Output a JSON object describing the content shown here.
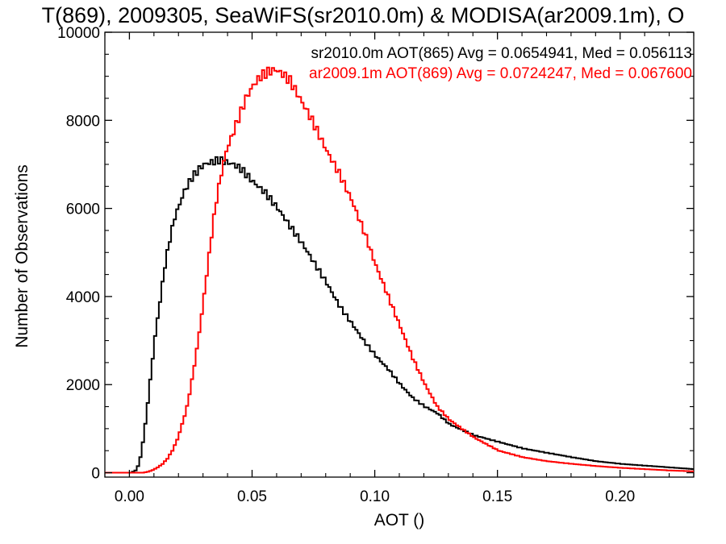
{
  "chart_data": {
    "type": "line",
    "title": "T(869), 2009305, SeaWiFS(sr2010.0m) & MODISA(ar2009.1m), O",
    "xlabel": "AOT ()",
    "ylabel": "Number of Observations",
    "xlim": [
      -0.01,
      0.23
    ],
    "ylim": [
      -100,
      10000
    ],
    "xticks": [
      0.0,
      0.05,
      0.1,
      0.15,
      0.2
    ],
    "xtick_labels": [
      "0.00",
      "0.05",
      "0.10",
      "0.15",
      "0.20"
    ],
    "yticks": [
      0,
      2000,
      4000,
      6000,
      8000,
      10000
    ],
    "ytick_labels": [
      "0",
      "2000",
      "4000",
      "6000",
      "8000",
      "10000"
    ],
    "grid": false,
    "step": true,
    "series": [
      {
        "name": "sr2010.0m AOT(865) Avg = 0.0654941, Med = 0.056113",
        "color": "#000000",
        "x": [
          -0.01,
          0.0,
          0.002,
          0.003,
          0.004,
          0.005,
          0.006,
          0.007,
          0.008,
          0.01,
          0.012,
          0.014,
          0.016,
          0.018,
          0.02,
          0.022,
          0.025,
          0.028,
          0.03,
          0.033,
          0.036,
          0.039,
          0.042,
          0.045,
          0.05,
          0.055,
          0.06,
          0.065,
          0.07,
          0.075,
          0.08,
          0.085,
          0.09,
          0.095,
          0.1,
          0.105,
          0.11,
          0.115,
          0.12,
          0.125,
          0.13,
          0.14,
          0.15,
          0.16,
          0.17,
          0.18,
          0.19,
          0.2,
          0.21,
          0.22,
          0.23
        ],
        "y": [
          0,
          0,
          50,
          150,
          350,
          700,
          1100,
          1600,
          2100,
          3100,
          3900,
          4700,
          5300,
          5800,
          6100,
          6400,
          6700,
          6900,
          7000,
          7050,
          7100,
          7050,
          7000,
          6900,
          6600,
          6350,
          6000,
          5600,
          5200,
          4750,
          4300,
          3800,
          3400,
          3000,
          2650,
          2350,
          2000,
          1700,
          1500,
          1350,
          1100,
          850,
          700,
          550,
          450,
          350,
          260,
          200,
          160,
          120,
          80
        ]
      },
      {
        "name": "ar2009.1m AOT(869) Avg = 0.0724247, Med = 0.067600",
        "color": "#ff0000",
        "x": [
          -0.01,
          0.005,
          0.007,
          0.009,
          0.011,
          0.013,
          0.015,
          0.017,
          0.019,
          0.021,
          0.023,
          0.025,
          0.027,
          0.029,
          0.031,
          0.033,
          0.035,
          0.037,
          0.039,
          0.041,
          0.043,
          0.045,
          0.047,
          0.05,
          0.053,
          0.056,
          0.059,
          0.062,
          0.065,
          0.068,
          0.071,
          0.074,
          0.077,
          0.08,
          0.085,
          0.09,
          0.095,
          0.1,
          0.105,
          0.11,
          0.115,
          0.12,
          0.125,
          0.13,
          0.14,
          0.15,
          0.16,
          0.17,
          0.18,
          0.19,
          0.2,
          0.21,
          0.22,
          0.23
        ],
        "y": [
          0,
          0,
          20,
          60,
          120,
          200,
          320,
          500,
          750,
          1100,
          1500,
          2100,
          2800,
          3600,
          4500,
          5400,
          6200,
          6800,
          7300,
          7600,
          7900,
          8200,
          8500,
          8800,
          9000,
          9100,
          9150,
          9050,
          8900,
          8600,
          8300,
          8000,
          7650,
          7300,
          6800,
          6200,
          5500,
          4700,
          4000,
          3300,
          2600,
          2000,
          1500,
          1200,
          800,
          500,
          350,
          260,
          200,
          150,
          110,
          80,
          50,
          30
        ]
      }
    ],
    "legend": {
      "placement": "top-right",
      "entries": [
        {
          "text": "sr2010.0m AOT(865) Avg = 0.0654941, Med = 0.056113",
          "color": "#000000"
        },
        {
          "text": "ar2009.1m AOT(869) Avg = 0.0724247, Med = 0.067600",
          "color": "#ff0000"
        }
      ]
    }
  }
}
